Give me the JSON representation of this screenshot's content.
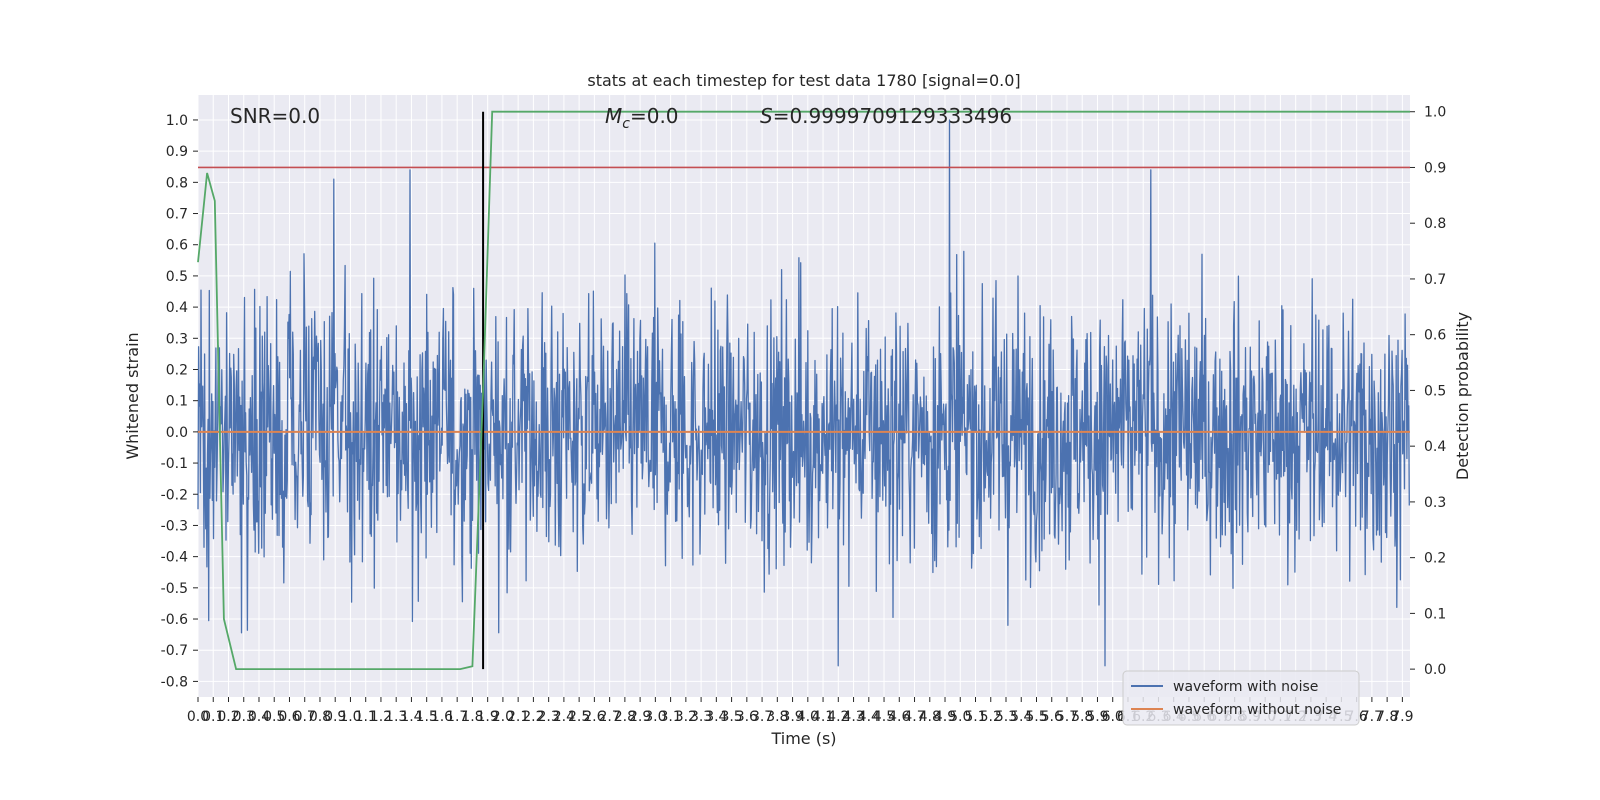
{
  "chart_data": {
    "type": "line",
    "title": "stats at each timestep for test data 1780 [signal=0.0]",
    "xlabel": "Time (s)",
    "ylabel_left": "Whitened strain",
    "ylabel_right": "Detection probability",
    "xlim": [
      0.0,
      7.95
    ],
    "ylim_left": [
      -0.85,
      1.08
    ],
    "ylim_right": [
      -0.05,
      1.03
    ],
    "x_ticks": [
      0.0,
      0.1,
      0.2,
      0.3,
      0.4,
      0.5,
      0.6,
      0.7,
      0.8,
      0.9,
      1.0,
      1.1,
      1.2,
      1.3,
      1.4,
      1.5,
      1.6,
      1.7,
      1.8,
      1.9,
      2.0,
      2.1,
      2.2,
      2.3,
      2.4,
      2.5,
      2.6,
      2.7,
      2.8,
      2.9,
      3.0,
      3.1,
      3.2,
      3.3,
      3.4,
      3.5,
      3.6,
      3.7,
      3.8,
      3.9,
      4.0,
      4.1,
      4.2,
      4.3,
      4.4,
      4.5,
      4.6,
      4.7,
      4.8,
      4.9,
      5.0,
      5.1,
      5.2,
      5.3,
      5.4,
      5.5,
      5.6,
      5.7,
      5.8,
      5.9,
      6.0,
      6.1,
      6.2,
      6.3,
      6.4,
      6.5,
      6.6,
      6.7,
      6.8,
      6.9,
      7.0,
      7.1,
      7.2,
      7.3,
      7.4,
      7.5,
      7.6,
      7.7,
      7.8,
      7.9
    ],
    "y_ticks_left": [
      -0.8,
      -0.7,
      -0.6,
      -0.5,
      -0.4,
      -0.3,
      -0.2,
      -0.1,
      0.0,
      0.1,
      0.2,
      0.3,
      0.4,
      0.5,
      0.6,
      0.7,
      0.8,
      0.9,
      1.0
    ],
    "y_ticks_right": [
      0.0,
      0.1,
      0.2,
      0.3,
      0.4,
      0.5,
      0.6,
      0.7,
      0.8,
      0.9,
      1.0
    ],
    "grid": true,
    "annotations": {
      "snr": "SNR=0.0",
      "mc_symbol": "M",
      "mc_sub": "c",
      "mc_value": "=0.0",
      "s": "S=0.9999709129333496"
    },
    "threshold_prob": 0.9,
    "event_time": 1.87,
    "series": [
      {
        "name": "waveform with noise",
        "axis": "left",
        "color": "#4c72b0",
        "kind": "noise",
        "sample_rate": 256,
        "amplitude_envelope": {
          "typical_max": 0.5,
          "typical_min": -0.5
        },
        "extreme_peaks": [
          {
            "x": 0.89,
            "y": 0.81
          },
          {
            "x": 1.39,
            "y": 0.84
          },
          {
            "x": 4.93,
            "y": 1.0
          },
          {
            "x": 6.25,
            "y": 0.84
          },
          {
            "x": 4.2,
            "y": -0.75
          },
          {
            "x": 5.95,
            "y": -0.75
          }
        ]
      },
      {
        "name": "waveform without noise",
        "axis": "left",
        "color": "#dd8452",
        "kind": "constant",
        "value": 0.0
      },
      {
        "name": "detection probability",
        "axis": "right",
        "color": "#55a868",
        "x": [
          0.0,
          0.06,
          0.11,
          0.17,
          0.25,
          1.72,
          1.8,
          1.87,
          1.93,
          7.95
        ],
        "y": [
          0.73,
          0.89,
          0.84,
          0.09,
          0.0,
          0.0,
          0.005,
          0.5,
          1.0,
          1.0
        ]
      }
    ],
    "legend": {
      "location": "lower right",
      "entries": [
        "waveform with noise",
        "waveform without noise"
      ]
    },
    "colors": {
      "axes_bg": "#eaeaf2",
      "grid": "#ffffff",
      "threshold": "#c44e52",
      "event_line": "#000000"
    }
  }
}
